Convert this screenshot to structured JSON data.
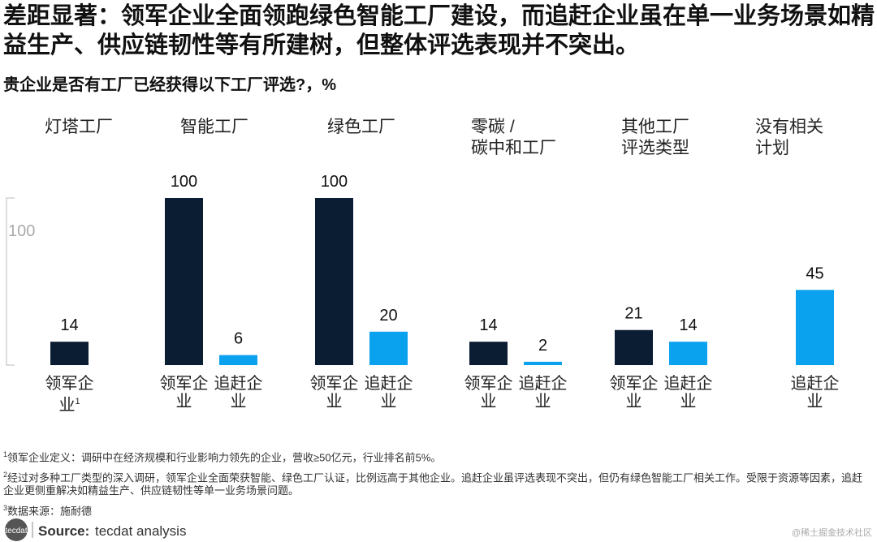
{
  "chart_data": {
    "type": "bar",
    "title": "差距显著：领军企业全面领跑绿色智能工厂建设，而追赶企业虽在单一业务场景如精益生产、供应链韧性等有所建树，但整体评选表现并不突出。",
    "subtitle": "贵企业是否有工厂已经获得以下工厂评选?，%",
    "categories": [
      "灯塔工厂",
      "智能工厂",
      "绿色工厂",
      "零碳 /\n碳中和工厂",
      "其他工厂\n评选类型",
      "没有相关\n计划"
    ],
    "series": [
      {
        "name": "领军企业",
        "color": "#0b1d33",
        "values": [
          14,
          100,
          100,
          14,
          21,
          null
        ]
      },
      {
        "name": "追赶企业",
        "color": "#0aa2ef",
        "values": [
          null,
          6,
          20,
          2,
          14,
          45
        ]
      }
    ],
    "first_label_note": "1",
    "ylim": [
      0,
      100
    ],
    "yticks": [
      100
    ],
    "footnotes": [
      {
        "marker": "1",
        "text": "领军企业定义：调研中在经济规模和行业影响力领先的企业，营收≥50亿元，行业排名前5%。"
      },
      {
        "marker": "2",
        "text": "经过对多种工厂类型的深入调研，领军企业全面荣获智能、绿色工厂认证，比例远高于其他企业。追赶企业虽评选表现不突出，但仍有绿色智能工厂相关工作。受限于资源等因素，追赶企业更侧重解决如精益生产、供应链韧性等单一业务场景问题。"
      },
      {
        "marker": "3",
        "text": "数据来源：施耐德"
      }
    ],
    "logo": "tecdat",
    "source_label": "Source:",
    "source": "tecdat analysis",
    "watermark": "@稀土掘金技术社区"
  }
}
